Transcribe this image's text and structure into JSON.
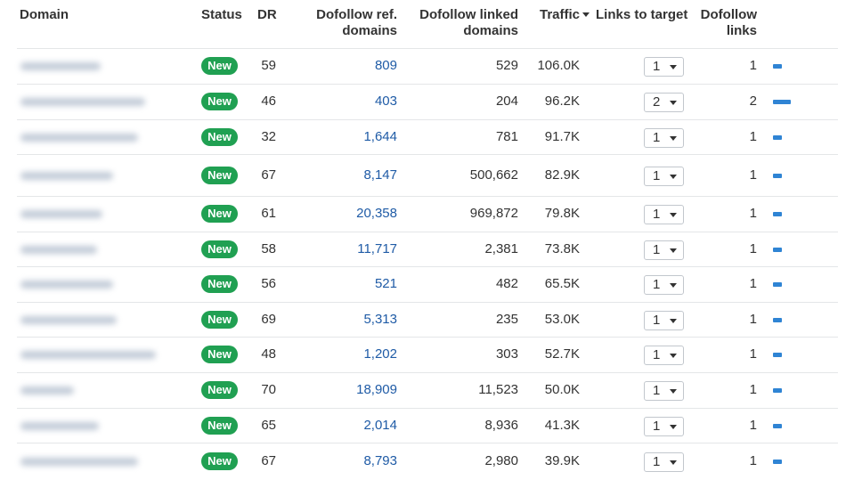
{
  "headers": {
    "domain": "Domain",
    "status": "Status",
    "dr": "DR",
    "ref_line1": "Dofollow ref.",
    "ref_line2": "domains",
    "linked_line1": "Dofollow linked",
    "linked_line2": "domains",
    "traffic": "Traffic",
    "links_to_target": "Links to target",
    "dofollow_line1": "Dofollow",
    "dofollow_line2": "links"
  },
  "rows": [
    {
      "status": "New",
      "dr": "59",
      "ref": "809",
      "linked": "529",
      "traffic": "106.0K",
      "links_to_target": "1",
      "dofollow": "1",
      "bar": 0.5
    },
    {
      "status": "New",
      "dr": "46",
      "ref": "403",
      "linked": "204",
      "traffic": "96.2K",
      "links_to_target": "2",
      "dofollow": "2",
      "bar": 1.0
    },
    {
      "status": "New",
      "dr": "32",
      "ref": "1,644",
      "linked": "781",
      "traffic": "91.7K",
      "links_to_target": "1",
      "dofollow": "1",
      "bar": 0.5
    },
    {
      "status": "New",
      "dr": "67",
      "ref": "8,147",
      "linked": "500,662",
      "traffic": "82.9K",
      "links_to_target": "1",
      "dofollow": "1",
      "bar": 0.5
    },
    {
      "status": "New",
      "dr": "61",
      "ref": "20,358",
      "linked": "969,872",
      "traffic": "79.8K",
      "links_to_target": "1",
      "dofollow": "1",
      "bar": 0.5
    },
    {
      "status": "New",
      "dr": "58",
      "ref": "11,717",
      "linked": "2,381",
      "traffic": "73.8K",
      "links_to_target": "1",
      "dofollow": "1",
      "bar": 0.5
    },
    {
      "status": "New",
      "dr": "56",
      "ref": "521",
      "linked": "482",
      "traffic": "65.5K",
      "links_to_target": "1",
      "dofollow": "1",
      "bar": 0.5
    },
    {
      "status": "New",
      "dr": "69",
      "ref": "5,313",
      "linked": "235",
      "traffic": "53.0K",
      "links_to_target": "1",
      "dofollow": "1",
      "bar": 0.5
    },
    {
      "status": "New",
      "dr": "48",
      "ref": "1,202",
      "linked": "303",
      "traffic": "52.7K",
      "links_to_target": "1",
      "dofollow": "1",
      "bar": 0.5
    },
    {
      "status": "New",
      "dr": "70",
      "ref": "18,909",
      "linked": "11,523",
      "traffic": "50.0K",
      "links_to_target": "1",
      "dofollow": "1",
      "bar": 0.5
    },
    {
      "status": "New",
      "dr": "65",
      "ref": "2,014",
      "linked": "8,936",
      "traffic": "41.3K",
      "links_to_target": "1",
      "dofollow": "1",
      "bar": 0.5
    },
    {
      "status": "New",
      "dr": "67",
      "ref": "8,793",
      "linked": "2,980",
      "traffic": "39.9K",
      "links_to_target": "1",
      "dofollow": "1",
      "bar": 0.5
    }
  ],
  "colors": {
    "badge": "#20a052",
    "link": "#1f5ba6",
    "bar": "#2f84d4",
    "border": "#e4e6e8"
  },
  "icons": {
    "sort": "caret-down-icon",
    "select": "chevron-down-icon"
  }
}
